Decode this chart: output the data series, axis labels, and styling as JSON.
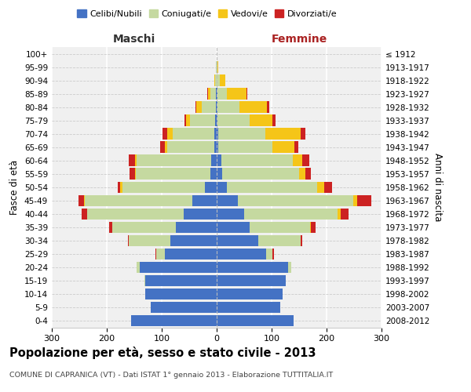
{
  "age_groups": [
    "0-4",
    "5-9",
    "10-14",
    "15-19",
    "20-24",
    "25-29",
    "30-34",
    "35-39",
    "40-44",
    "45-49",
    "50-54",
    "55-59",
    "60-64",
    "65-69",
    "70-74",
    "75-79",
    "80-84",
    "85-89",
    "90-94",
    "95-99",
    "100+"
  ],
  "birth_years": [
    "2008-2012",
    "2003-2007",
    "1998-2002",
    "1993-1997",
    "1988-1992",
    "1983-1987",
    "1978-1982",
    "1973-1977",
    "1968-1972",
    "1963-1967",
    "1958-1962",
    "1953-1957",
    "1948-1952",
    "1943-1947",
    "1938-1942",
    "1933-1937",
    "1928-1932",
    "1923-1927",
    "1918-1922",
    "1913-1917",
    "≤ 1912"
  ],
  "maschi": {
    "celibe": [
      155,
      120,
      130,
      130,
      140,
      95,
      85,
      75,
      60,
      45,
      22,
      12,
      10,
      5,
      5,
      3,
      2,
      1,
      0,
      0,
      0
    ],
    "coniugato": [
      0,
      0,
      0,
      1,
      5,
      15,
      75,
      115,
      175,
      195,
      150,
      135,
      135,
      85,
      75,
      45,
      25,
      10,
      3,
      1,
      0
    ],
    "vedovo": [
      0,
      0,
      0,
      0,
      0,
      0,
      0,
      0,
      1,
      2,
      3,
      2,
      3,
      5,
      10,
      8,
      10,
      5,
      2,
      0,
      0
    ],
    "divorziato": [
      0,
      0,
      0,
      0,
      1,
      2,
      2,
      5,
      10,
      10,
      5,
      10,
      12,
      8,
      8,
      3,
      2,
      1,
      0,
      0,
      0
    ]
  },
  "femmine": {
    "nubile": [
      140,
      115,
      120,
      125,
      130,
      90,
      75,
      60,
      50,
      38,
      18,
      10,
      8,
      3,
      3,
      2,
      1,
      1,
      0,
      0,
      0
    ],
    "coniugata": [
      0,
      0,
      0,
      1,
      5,
      12,
      78,
      110,
      170,
      210,
      165,
      140,
      130,
      98,
      85,
      58,
      40,
      18,
      5,
      1,
      0
    ],
    "vedova": [
      0,
      0,
      0,
      0,
      0,
      0,
      0,
      2,
      5,
      8,
      12,
      12,
      18,
      40,
      65,
      42,
      50,
      35,
      10,
      2,
      0
    ],
    "divorziata": [
      0,
      0,
      0,
      0,
      1,
      2,
      3,
      8,
      15,
      25,
      15,
      10,
      12,
      8,
      8,
      5,
      5,
      2,
      0,
      0,
      0
    ]
  },
  "colors": {
    "celibe_nubile": "#4472c4",
    "coniugato_coniugata": "#c5d9a0",
    "vedovo_vedova": "#f5c518",
    "divorziato_divorziata": "#cc2222"
  },
  "title": "Popolazione per età, sesso e stato civile - 2013",
  "subtitle": "COMUNE DI CAPRANICA (VT) - Dati ISTAT 1° gennaio 2013 - Elaborazione TUTTITALIA.IT",
  "xlabel_left": "Maschi",
  "xlabel_right": "Femmine",
  "ylabel": "Fasce di età",
  "ylabel_right": "Anni di nascita",
  "xlim": 300,
  "legend_labels": [
    "Celibi/Nubili",
    "Coniugati/e",
    "Vedovi/e",
    "Divorziati/e"
  ],
  "background_color": "#f0f0f0"
}
